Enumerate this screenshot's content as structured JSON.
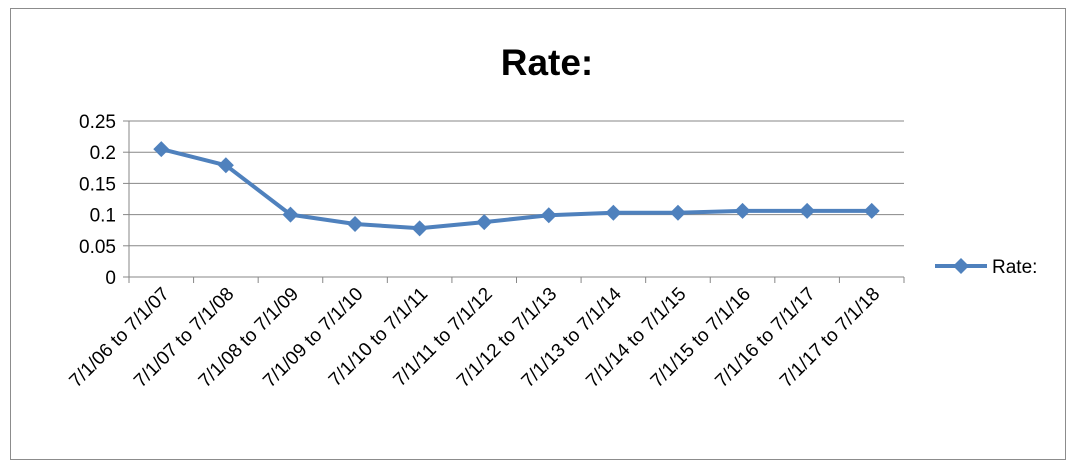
{
  "chart_data": {
    "type": "line",
    "title": "Rate:",
    "xlabel": "",
    "ylabel": "",
    "categories": [
      "7/1/06 to 7/1/07",
      "7/1/07 to 7/1/08",
      "7/1/08 to 7/1/09",
      "7/1/09 to 7/1/10",
      "7/1/10 to 7/1/11",
      "7/1/11 to 7/1/12",
      "7/1/12 to 7/1/13",
      "7/1/13 to 7/1/14",
      "7/1/14 to 7/1/15",
      "7/1/15 to 7/1/16",
      "7/1/16 to 7/1/17",
      "7/1/17 to 7/1/18"
    ],
    "series": [
      {
        "name": "Rate:",
        "color": "#4f81bd",
        "marker": "diamond",
        "values": [
          0.205,
          0.179,
          0.1,
          0.085,
          0.078,
          0.088,
          0.099,
          0.103,
          0.103,
          0.106,
          0.106,
          0.106
        ]
      }
    ],
    "ylim": [
      0,
      0.25
    ],
    "yticks": [
      "0",
      "0.05",
      "0.1",
      "0.15",
      "0.2",
      "0.25"
    ],
    "grid": true,
    "legend_position": "right"
  }
}
